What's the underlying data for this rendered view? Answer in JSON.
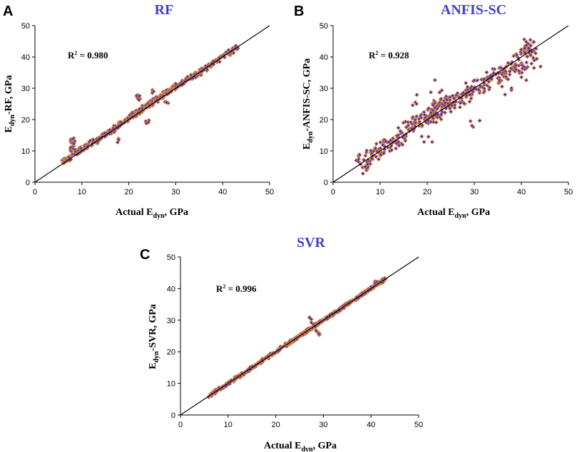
{
  "colors": {
    "marker_fill": "#4a2fb8",
    "marker_edge": "#e08a3c",
    "title": "#4040d0",
    "line": "#000000"
  },
  "chart_data": [
    {
      "type": "scatter",
      "panel_label": "A",
      "title": "RF",
      "xlabel": {
        "pre": "Actual E",
        "sub": "dyn",
        "post": ", GPa"
      },
      "ylabel": {
        "pre": "E",
        "sub": "dyn",
        "post": "-RF, GPa"
      },
      "r2": {
        "pre": "R",
        "sup": "2",
        "post": " = 0.980"
      },
      "xlim": [
        0,
        50
      ],
      "ylim": [
        0,
        50
      ],
      "xticks": [
        "0",
        "10",
        "20",
        "30",
        "40",
        "50"
      ],
      "yticks": [
        "0",
        "10",
        "20",
        "30",
        "40",
        "50"
      ],
      "reference_line": "y = x",
      "spread": 0.8,
      "x": [
        6,
        6.5,
        7,
        7.5,
        8,
        8,
        8.5,
        9,
        10,
        11,
        12,
        13,
        14,
        15,
        16,
        17,
        18,
        19,
        20,
        20.5,
        21,
        21.5,
        22,
        22.5,
        23,
        23.5,
        24,
        24.5,
        25,
        25.5,
        26,
        26.5,
        27,
        27.5,
        28,
        28.5,
        29,
        30,
        31,
        32,
        33,
        34,
        35,
        36,
        37,
        38,
        39,
        40,
        41,
        42,
        43,
        18,
        24,
        25,
        28,
        22
      ],
      "y": [
        6.5,
        7,
        7.5,
        8,
        13,
        14,
        10,
        9.5,
        10.5,
        11.5,
        12.5,
        13,
        14.5,
        15.5,
        16,
        17,
        18.5,
        19,
        20.5,
        21,
        21.5,
        22,
        22.5,
        23,
        23.5,
        24,
        24.5,
        25,
        25.5,
        26,
        26.5,
        27,
        27.5,
        28,
        28.5,
        29,
        29.5,
        30.5,
        31.5,
        32,
        33.5,
        34,
        35,
        36,
        37,
        38,
        39,
        40,
        41,
        42,
        43,
        13.5,
        19.5,
        29,
        25,
        27
      ]
    },
    {
      "type": "scatter",
      "panel_label": "B",
      "title": "ANFIS-SC",
      "xlabel": {
        "pre": "Actual E",
        "sub": "dyn",
        "post": ", GPa"
      },
      "ylabel": {
        "pre": "E",
        "sub": "dyn",
        "post": "-ANFIS-SC, GPa"
      },
      "r2": {
        "pre": "R",
        "sup": "2",
        "post": " = 0.928"
      },
      "xlim": [
        0,
        50
      ],
      "ylim": [
        0,
        50
      ],
      "xticks": [
        "0",
        "10",
        "20",
        "30",
        "40",
        "50"
      ],
      "yticks": [
        "0",
        "10",
        "20",
        "30",
        "40",
        "50"
      ],
      "reference_line": "y = x",
      "spread": 2.5,
      "x": [
        6,
        6.5,
        7,
        8,
        9,
        10,
        11,
        12,
        13,
        14,
        15,
        16,
        17,
        18,
        19,
        20,
        20.5,
        21,
        21.5,
        22,
        22.5,
        23,
        23.5,
        24,
        24.5,
        25,
        26,
        27,
        28,
        29,
        30,
        31,
        32,
        33,
        34,
        35,
        36,
        37,
        38,
        39,
        40,
        41,
        42,
        43,
        17,
        20,
        22,
        30,
        37,
        41,
        42,
        40
      ],
      "y": [
        5,
        6,
        7,
        8,
        9,
        10,
        11,
        12,
        13,
        14,
        15,
        17,
        18,
        19,
        20,
        20.5,
        22,
        21,
        23,
        22,
        24,
        23,
        25,
        24,
        26,
        25,
        26,
        27,
        28,
        29,
        30,
        31,
        31,
        32,
        33,
        35,
        34,
        36,
        37,
        39,
        39,
        41,
        44,
        39,
        26,
        14,
        31,
        20,
        29,
        44,
        43,
        35
      ]
    },
    {
      "type": "scatter",
      "panel_label": "C",
      "title": "SVR",
      "xlabel": {
        "pre": "Actual E",
        "sub": "dyn",
        "post": ", GPa"
      },
      "ylabel": {
        "pre": "E",
        "sub": "dyn",
        "post": "-SVR, GPa"
      },
      "r2": {
        "pre": "R",
        "sup": "2",
        "post": " = 0.996"
      },
      "xlim": [
        0,
        50
      ],
      "ylim": [
        0,
        50
      ],
      "xticks": [
        "0",
        "10",
        "20",
        "30",
        "40",
        "50"
      ],
      "yticks": [
        "0",
        "10",
        "20",
        "30",
        "40",
        "50"
      ],
      "reference_line": "y = x",
      "spread": 0.45,
      "x": [
        6,
        7,
        8,
        9,
        10,
        11,
        12,
        13,
        14,
        15,
        16,
        17,
        18,
        19,
        20,
        21,
        22,
        22.5,
        23,
        23.5,
        24,
        24.5,
        25,
        25.5,
        26,
        26.5,
        27,
        27.5,
        28,
        28.5,
        29,
        30,
        31,
        32,
        33,
        34,
        35,
        36,
        37,
        38,
        39,
        40,
        41,
        42,
        43,
        27,
        29,
        41
      ],
      "y": [
        6,
        7,
        8,
        9,
        10,
        11,
        12,
        13,
        14,
        15,
        16,
        17,
        18,
        19,
        20,
        21,
        22,
        22.5,
        23,
        23.5,
        24,
        24.5,
        25,
        25.5,
        26,
        26.5,
        27,
        27.5,
        28,
        28.5,
        29,
        30,
        31,
        32,
        33,
        34,
        35,
        36,
        37,
        38,
        39,
        40,
        41,
        42,
        43,
        31,
        25.5,
        42
      ]
    }
  ]
}
